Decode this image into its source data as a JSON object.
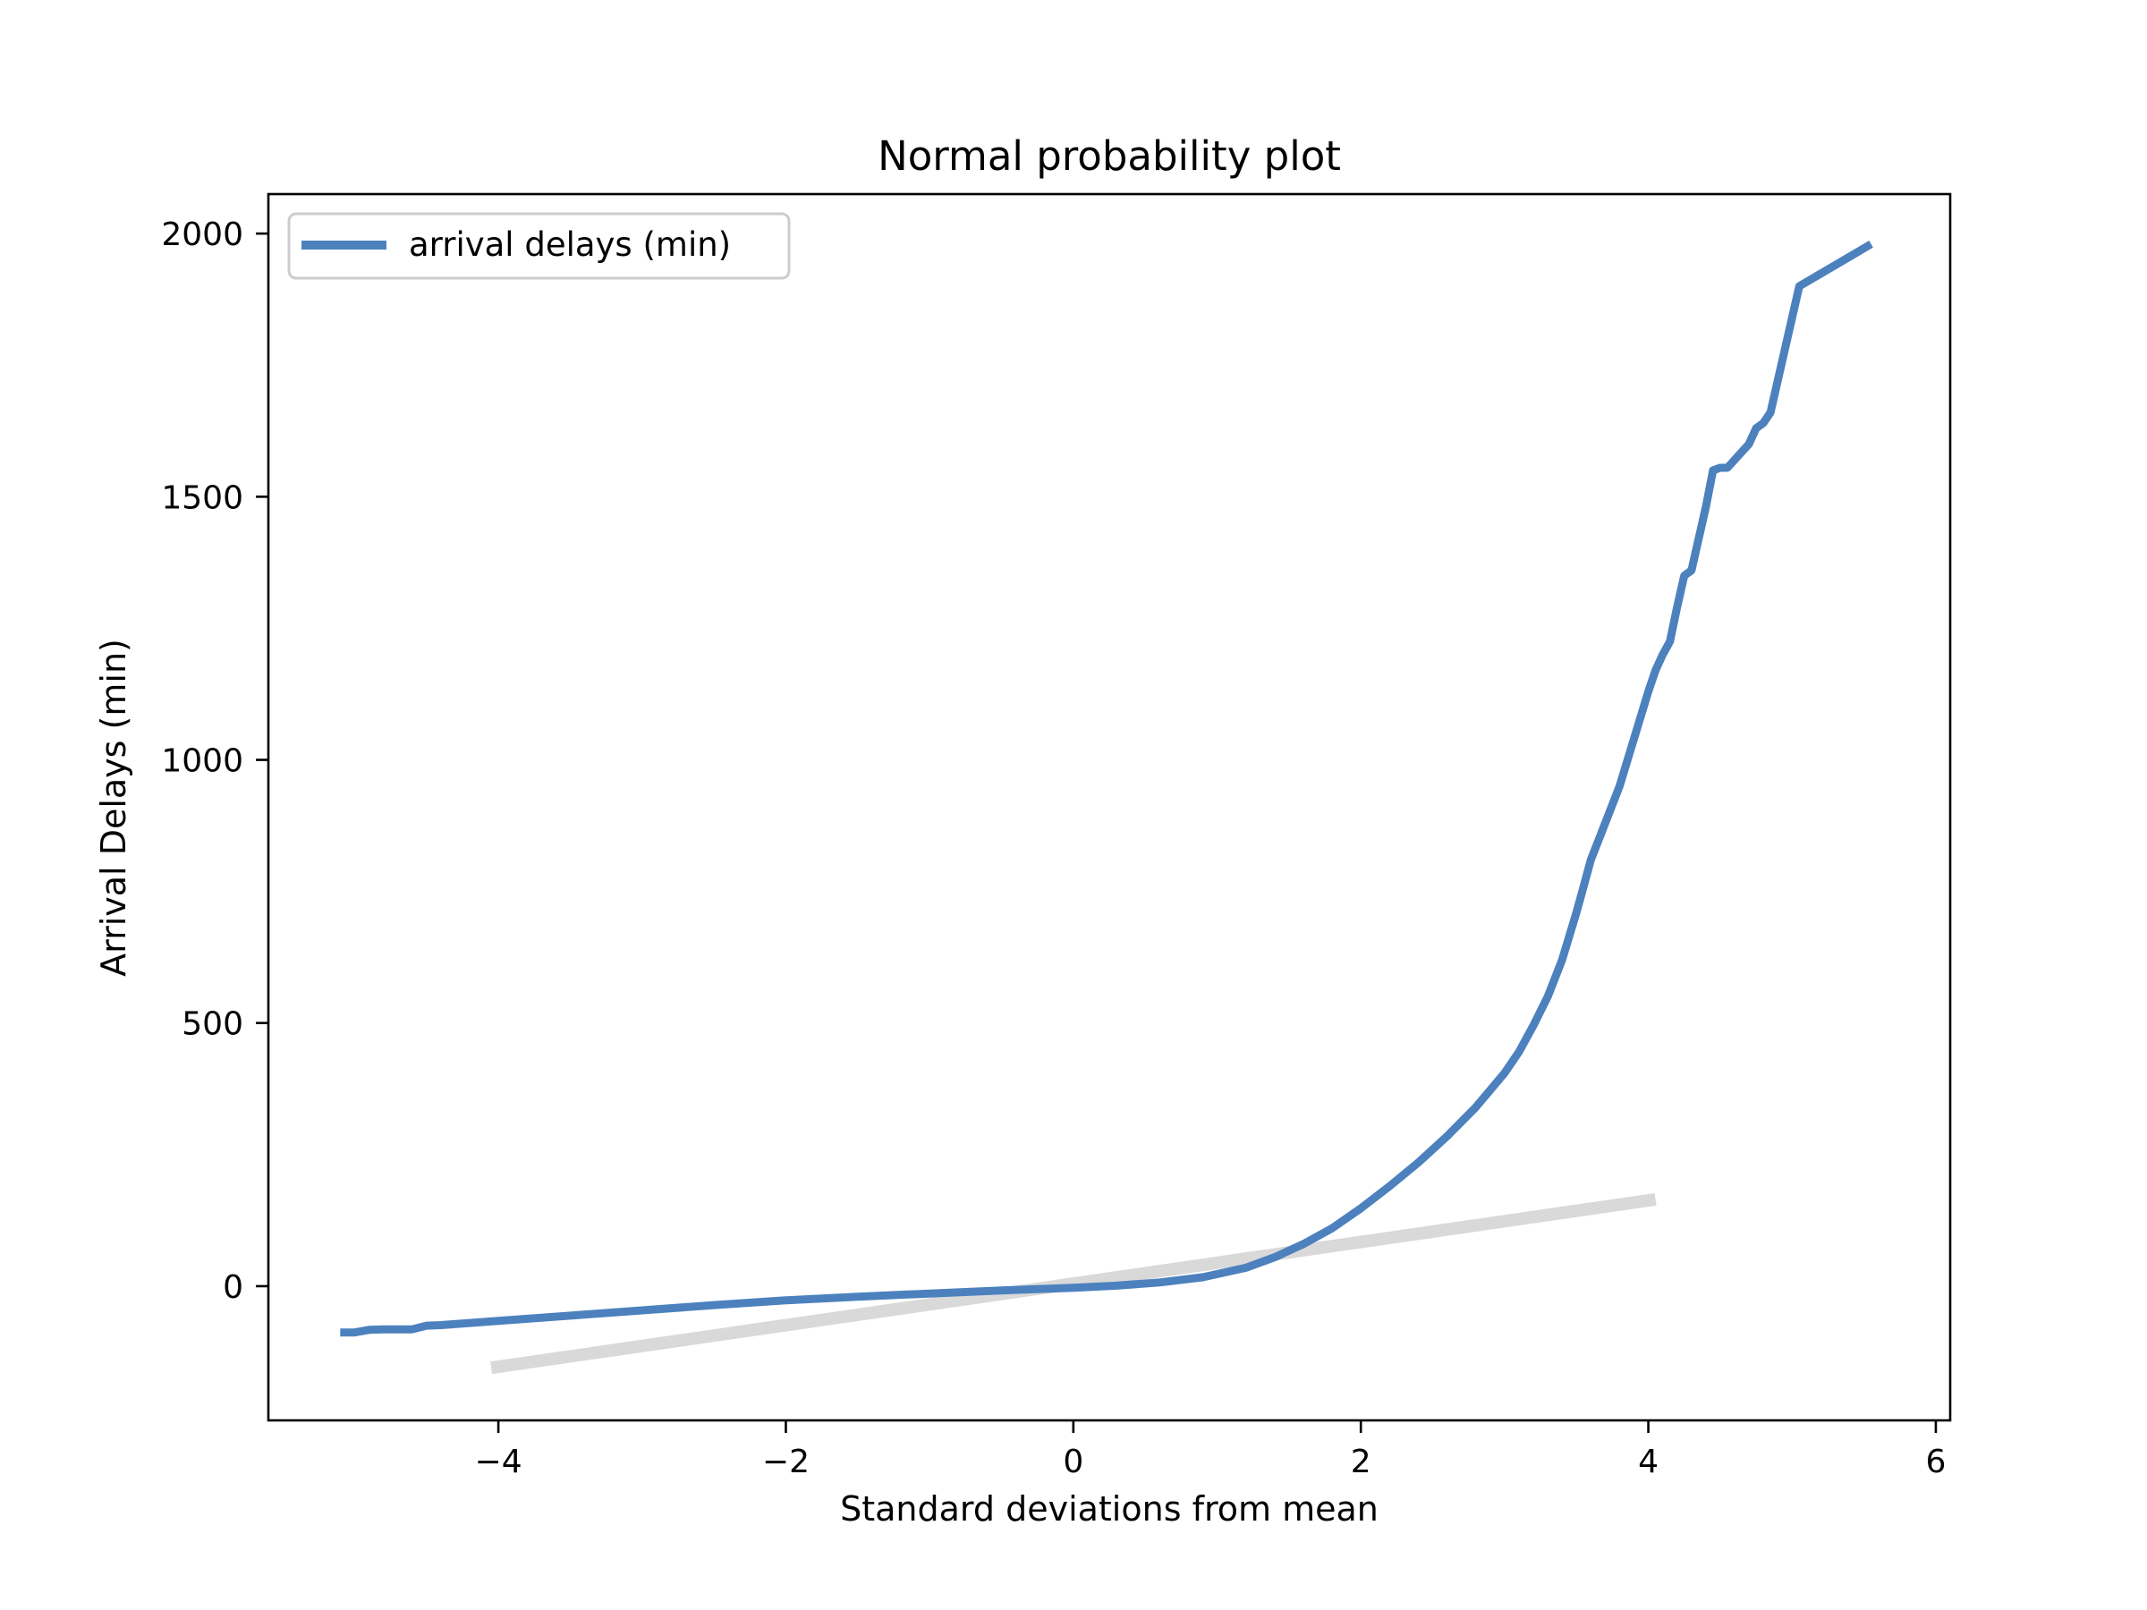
{
  "chart_data": {
    "type": "line",
    "title": "Normal probability plot",
    "xlabel": "Standard deviations from mean",
    "ylabel": "Arrival Delays (min)",
    "xlim": [
      -5.6,
      6.1
    ],
    "ylim": [
      -255,
      2075
    ],
    "x_ticks": [
      {
        "value": -4,
        "label": "−4"
      },
      {
        "value": -2,
        "label": "−2"
      },
      {
        "value": 0,
        "label": "0"
      },
      {
        "value": 2,
        "label": "2"
      },
      {
        "value": 4,
        "label": "4"
      },
      {
        "value": 6,
        "label": "6"
      }
    ],
    "y_ticks": [
      {
        "value": 0,
        "label": "0"
      },
      {
        "value": 500,
        "label": "500"
      },
      {
        "value": 1000,
        "label": "1000"
      },
      {
        "value": 1500,
        "label": "1500"
      },
      {
        "value": 2000,
        "label": "2000"
      }
    ],
    "grid": false,
    "legend": {
      "position": "top-left",
      "entries": [
        "arrival delays (min)"
      ]
    },
    "series": [
      {
        "name": "arrival delays (min)",
        "color": "#4c81be",
        "x": [
          -5.1,
          -5.0,
          -4.9,
          -4.8,
          -4.6,
          -4.5,
          -4.4,
          -4.0,
          -3.5,
          -3.0,
          -2.5,
          -2.0,
          -1.5,
          -1.0,
          -0.5,
          0.0,
          0.3,
          0.6,
          0.9,
          1.2,
          1.4,
          1.6,
          1.8,
          2.0,
          2.2,
          2.4,
          2.6,
          2.8,
          3.0,
          3.1,
          3.2,
          3.3,
          3.4,
          3.5,
          3.55,
          3.6,
          3.7,
          3.8,
          3.9,
          4.0,
          4.05,
          4.1,
          4.15,
          4.2,
          4.25,
          4.3,
          4.35,
          4.4,
          4.45,
          4.5,
          4.55,
          4.6,
          4.7,
          4.75,
          4.8,
          4.85,
          5.05,
          5.55
        ],
        "y": [
          -88,
          -88,
          -83,
          -82,
          -82,
          -75,
          -74,
          -66,
          -56,
          -46,
          -36,
          -27,
          -20,
          -14,
          -8,
          -3,
          1,
          7,
          17,
          35,
          55,
          80,
          110,
          148,
          190,
          235,
          285,
          340,
          405,
          445,
          495,
          550,
          620,
          710,
          760,
          810,
          880,
          950,
          1040,
          1130,
          1170,
          1200,
          1225,
          1290,
          1350,
          1360,
          1420,
          1480,
          1550,
          1555,
          1555,
          1570,
          1600,
          1630,
          1640,
          1660,
          1900,
          1980
        ]
      },
      {
        "name": "",
        "color": "#d9d9d9",
        "x": [
          -4.05,
          4.05
        ],
        "y": [
          -155,
          165
        ]
      }
    ]
  }
}
